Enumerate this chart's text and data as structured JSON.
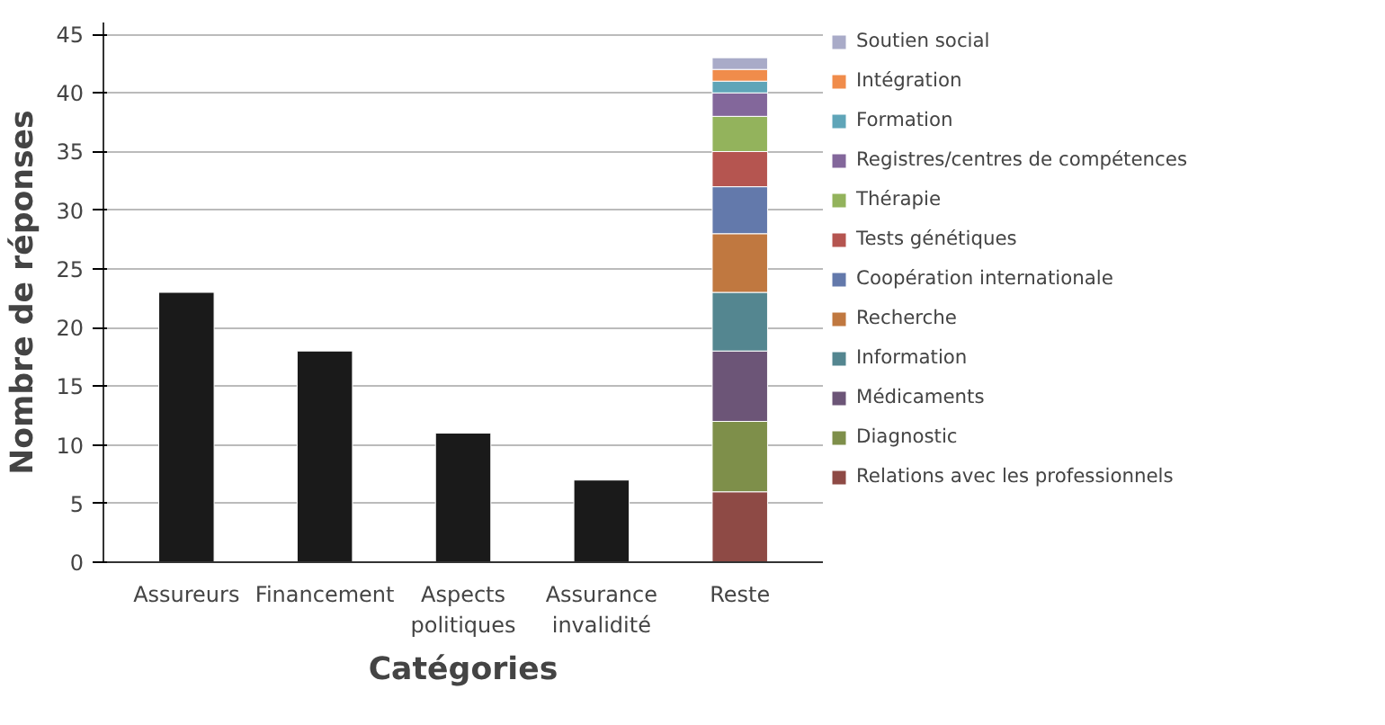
{
  "chart_data": {
    "type": "bar",
    "stacked": true,
    "xlabel": "Catégories",
    "ylabel": "Nombre de réponses",
    "categories": [
      "Assureurs",
      "Financement",
      "Aspects politiques",
      "Assurance invalidité",
      "Reste"
    ],
    "ylim": [
      0,
      46
    ],
    "yticks": [
      0,
      5,
      10,
      15,
      20,
      25,
      30,
      35,
      40,
      45
    ],
    "grid": "y",
    "legend": "right",
    "series": [
      {
        "color": "#1a1a1a",
        "values": [
          23,
          18,
          11,
          7,
          null
        ]
      },
      {
        "name": "Relations avec les professionnels",
        "color": "#8e4a45",
        "values": [
          null,
          null,
          null,
          null,
          6
        ]
      },
      {
        "name": "Diagnostic",
        "color": "#7e8f4a",
        "values": [
          null,
          null,
          null,
          null,
          6
        ]
      },
      {
        "name": "Médicaments",
        "color": "#6c5577",
        "values": [
          null,
          null,
          null,
          null,
          6
        ]
      },
      {
        "name": "Information",
        "color": "#548690",
        "values": [
          null,
          null,
          null,
          null,
          5
        ]
      },
      {
        "name": "Recherche",
        "color": "#c07840",
        "values": [
          null,
          null,
          null,
          null,
          5
        ]
      },
      {
        "name": "Coopération internationale",
        "color": "#6379ab",
        "values": [
          null,
          null,
          null,
          null,
          4
        ]
      },
      {
        "name": "Tests génétiques",
        "color": "#b55550",
        "values": [
          null,
          null,
          null,
          null,
          3
        ]
      },
      {
        "name": "Thérapie",
        "color": "#93b35c",
        "values": [
          null,
          null,
          null,
          null,
          3
        ]
      },
      {
        "name": "Registres/centres de compétences",
        "color": "#83679b",
        "values": [
          null,
          null,
          null,
          null,
          2
        ]
      },
      {
        "name": "Formation",
        "color": "#5fa5b8",
        "values": [
          null,
          null,
          null,
          null,
          1
        ]
      },
      {
        "name": "Intégration",
        "color": "#f08c4b",
        "values": [
          null,
          null,
          null,
          null,
          1
        ]
      },
      {
        "name": "Soutien social",
        "color": "#a9abc8",
        "values": [
          null,
          null,
          null,
          null,
          1
        ]
      }
    ]
  }
}
